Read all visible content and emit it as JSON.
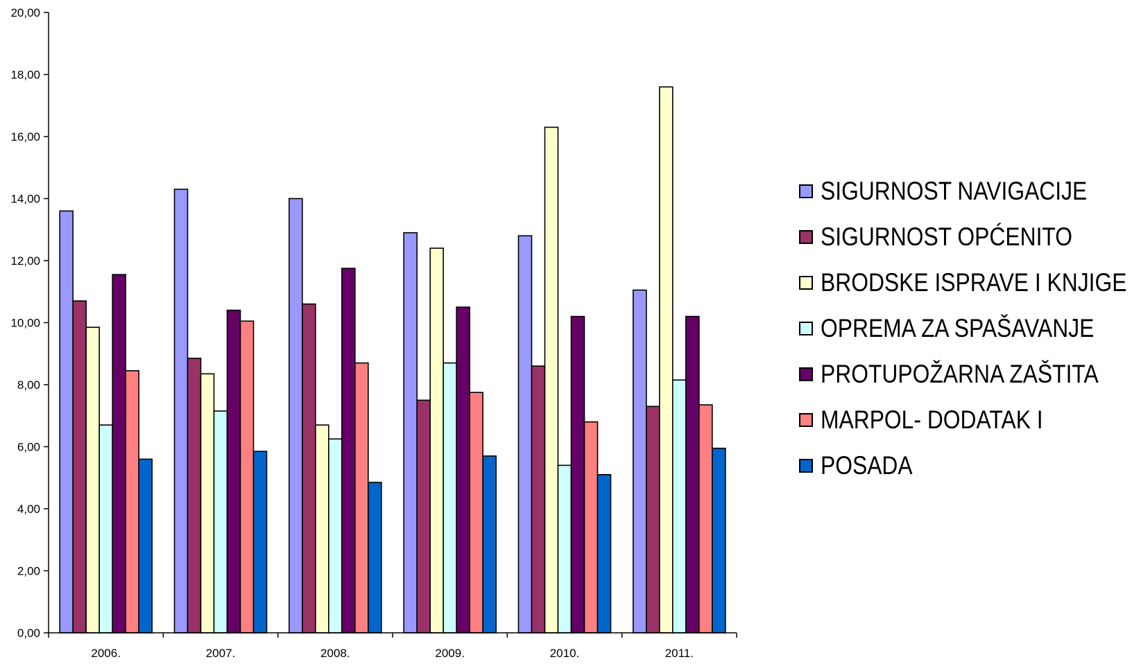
{
  "chart_data": {
    "type": "bar",
    "title": "",
    "xlabel": "",
    "ylabel": "",
    "ylim": [
      0,
      20
    ],
    "yticks": [
      "0,00",
      "2,00",
      "4,00",
      "6,00",
      "8,00",
      "10,00",
      "12,00",
      "14,00",
      "16,00",
      "18,00",
      "20,00"
    ],
    "categories": [
      "2006.",
      "2007.",
      "2008.",
      "2009.",
      "2010.",
      "2011."
    ],
    "grid": false,
    "legend_position": "right",
    "series": [
      {
        "name": "SIGURNOST NAVIGACIJE",
        "color": "#9999ff",
        "values": [
          13.6,
          14.3,
          14.0,
          12.9,
          12.8,
          11.05
        ]
      },
      {
        "name": "SIGURNOST OPĆENITO",
        "color": "#993366",
        "values": [
          10.7,
          8.85,
          10.6,
          7.5,
          8.6,
          7.3
        ]
      },
      {
        "name": "BRODSKE ISPRAVE I KNJIGE",
        "color": "#ffffcc",
        "values": [
          9.85,
          8.35,
          6.7,
          12.4,
          16.3,
          17.6
        ]
      },
      {
        "name": "OPREMA ZA SPAŠAVANJE",
        "color": "#ccffff",
        "values": [
          6.7,
          7.15,
          6.25,
          8.7,
          5.4,
          8.15
        ]
      },
      {
        "name": "PROTUPOŽARNA ZAŠTITA",
        "color": "#660066",
        "values": [
          11.55,
          10.4,
          11.75,
          10.5,
          10.2,
          10.2
        ]
      },
      {
        "name": "MARPOL- DODATAK I",
        "color": "#ff8080",
        "values": [
          8.45,
          10.05,
          8.7,
          7.75,
          6.8,
          7.35
        ]
      },
      {
        "name": "POSADA",
        "color": "#0066cc",
        "values": [
          5.6,
          5.85,
          4.85,
          5.7,
          5.1,
          5.95
        ]
      }
    ]
  }
}
